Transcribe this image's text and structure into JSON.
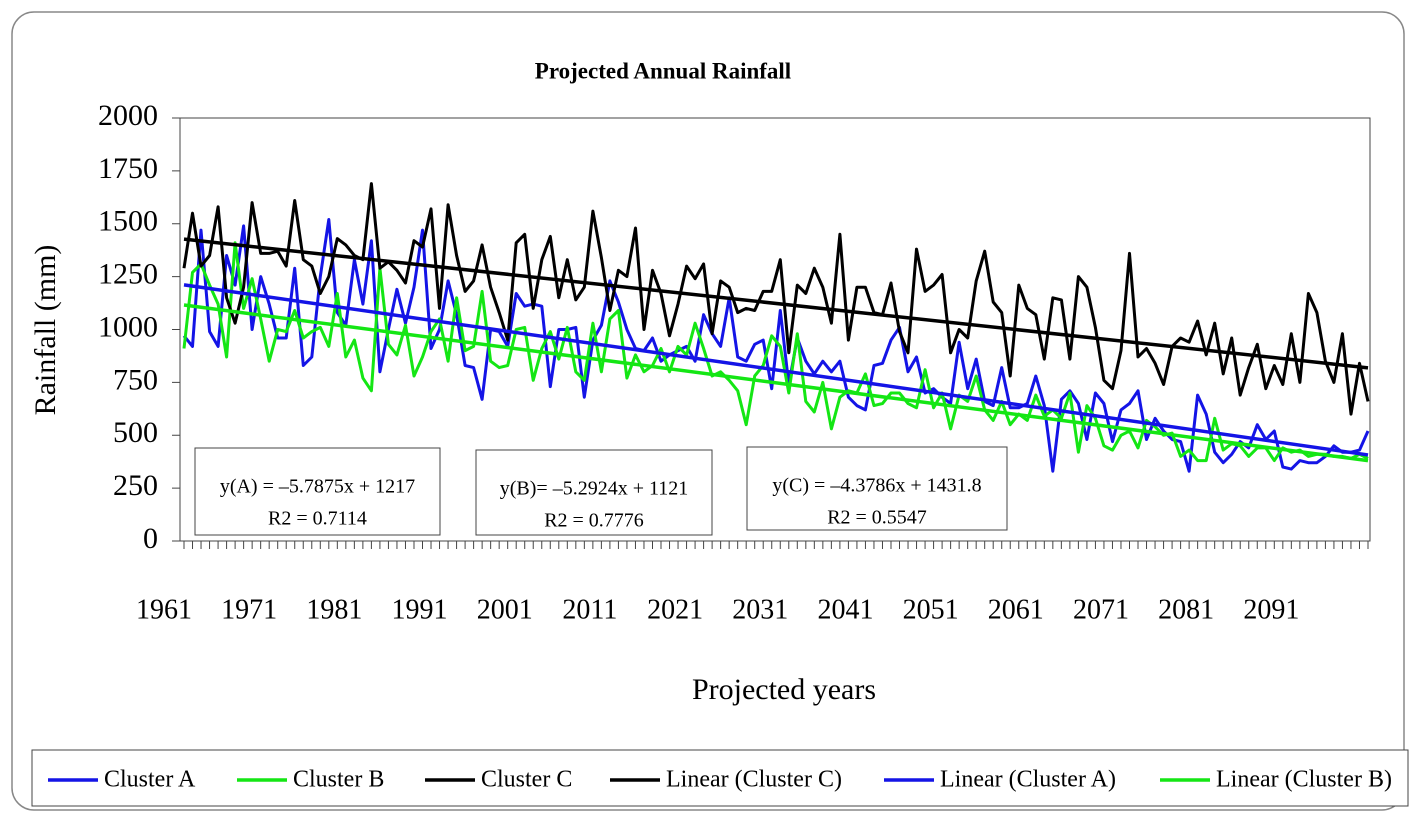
{
  "chart_data": {
    "type": "line",
    "title": "Projected Annual Rainfall",
    "x_label": "Projected years",
    "y_label": "Rainfall (mm)",
    "categories": [
      "1961",
      null,
      null,
      null,
      null,
      null,
      null,
      null,
      null,
      null,
      "1971",
      null,
      null,
      null,
      null,
      null,
      null,
      null,
      null,
      null,
      "1981",
      null,
      null,
      null,
      null,
      null,
      null,
      null,
      null,
      null,
      "1991",
      null,
      null,
      null,
      null,
      null,
      null,
      null,
      null,
      null,
      "2001",
      null,
      null,
      null,
      null,
      null,
      null,
      null,
      null,
      null,
      "2011",
      null,
      null,
      null,
      null,
      null,
      null,
      null,
      null,
      null,
      "2021",
      null,
      null,
      null,
      null,
      null,
      null,
      null,
      null,
      null,
      "2031",
      null,
      null,
      null,
      null,
      null,
      null,
      null,
      null,
      null,
      "2041",
      null,
      null,
      null,
      null,
      null,
      null,
      null,
      null,
      null,
      "2051",
      null,
      null,
      null,
      null,
      null,
      null,
      null,
      null,
      null,
      "2061",
      null,
      null,
      null,
      null,
      null,
      null,
      null,
      null,
      null,
      "2071",
      null,
      null,
      null,
      null,
      null,
      null,
      null,
      null,
      null,
      "2081",
      null,
      null,
      null,
      null,
      null,
      null,
      null,
      null,
      null,
      "2091",
      null,
      null,
      null,
      null,
      null,
      null,
      null,
      null,
      null
    ],
    "series": [
      {
        "name": "Cluster A",
        "color": "#1414e6",
        "values": [
          970,
          920,
          1470,
          990,
          920,
          1350,
          1210,
          1490,
          1000,
          1250,
          1120,
          960,
          960,
          1290,
          830,
          870,
          1250,
          1520,
          1080,
          1020,
          1330,
          1120,
          1420,
          800,
          1000,
          1190,
          1030,
          1200,
          1470,
          910,
          1000,
          1230,
          1070,
          830,
          820,
          670,
          1000,
          990,
          920,
          1170,
          1110,
          1120,
          1110,
          730,
          1000,
          1000,
          1010,
          680,
          950,
          1020,
          1230,
          1130,
          1000,
          910,
          900,
          960,
          850,
          880,
          900,
          920,
          850,
          1070,
          980,
          920,
          1150,
          870,
          850,
          930,
          950,
          720,
          1090,
          740,
          960,
          850,
          790,
          850,
          800,
          850,
          680,
          640,
          620,
          830,
          840,
          950,
          1010,
          800,
          870,
          700,
          720,
          680,
          650,
          940,
          720,
          860,
          660,
          640,
          820,
          630,
          630,
          650,
          780,
          640,
          330,
          670,
          710,
          650,
          480,
          700,
          650,
          470,
          620,
          650,
          710,
          480,
          580,
          520,
          480,
          470,
          330,
          690,
          600,
          420,
          370,
          410,
          470,
          440,
          550,
          480,
          520,
          350,
          340,
          380,
          370,
          370,
          400,
          450,
          420,
          420,
          430,
          520
        ]
      },
      {
        "name": "Cluster B",
        "color": "#14e614",
        "values": [
          910,
          1270,
          1310,
          1210,
          1120,
          870,
          1410,
          1100,
          1240,
          1050,
          850,
          1000,
          990,
          1090,
          960,
          990,
          1010,
          920,
          1170,
          870,
          950,
          770,
          710,
          1290,
          930,
          880,
          1020,
          780,
          870,
          990,
          1050,
          850,
          1150,
          900,
          920,
          1180,
          850,
          820,
          830,
          1000,
          1010,
          760,
          910,
          990,
          860,
          1010,
          800,
          760,
          1030,
          800,
          1050,
          1090,
          770,
          880,
          800,
          830,
          910,
          800,
          920,
          880,
          1030,
          910,
          780,
          800,
          760,
          710,
          550,
          780,
          830,
          970,
          920,
          700,
          980,
          660,
          610,
          750,
          530,
          680,
          710,
          700,
          790,
          640,
          650,
          700,
          700,
          650,
          630,
          810,
          630,
          700,
          530,
          690,
          660,
          780,
          620,
          570,
          660,
          550,
          600,
          570,
          690,
          590,
          620,
          580,
          700,
          420,
          640,
          580,
          450,
          430,
          500,
          520,
          440,
          570,
          540,
          500,
          510,
          400,
          430,
          380,
          380,
          580,
          430,
          460,
          450,
          400,
          440,
          440,
          380,
          440,
          420,
          430,
          400,
          410,
          410,
          400,
          400,
          390,
          410,
          390
        ]
      },
      {
        "name": "Cluster C",
        "color": "#000000",
        "values": [
          1290,
          1550,
          1300,
          1350,
          1580,
          1150,
          1030,
          1200,
          1600,
          1360,
          1360,
          1370,
          1300,
          1610,
          1330,
          1300,
          1170,
          1250,
          1430,
          1400,
          1350,
          1330,
          1690,
          1290,
          1320,
          1280,
          1220,
          1420,
          1390,
          1570,
          1100,
          1590,
          1350,
          1180,
          1230,
          1400,
          1200,
          1080,
          950,
          1410,
          1450,
          1100,
          1330,
          1440,
          1150,
          1330,
          1140,
          1200,
          1560,
          1340,
          1090,
          1280,
          1250,
          1480,
          1000,
          1280,
          1170,
          970,
          1120,
          1300,
          1240,
          1310,
          980,
          1230,
          1200,
          1080,
          1100,
          1090,
          1180,
          1180,
          1330,
          890,
          1210,
          1170,
          1290,
          1200,
          1030,
          1450,
          950,
          1200,
          1200,
          1080,
          1070,
          1220,
          990,
          890,
          1380,
          1180,
          1210,
          1260,
          890,
          1000,
          960,
          1230,
          1370,
          1130,
          1080,
          780,
          1210,
          1100,
          1070,
          860,
          1150,
          1140,
          860,
          1250,
          1200,
          1010,
          760,
          720,
          900,
          1360,
          870,
          910,
          840,
          740,
          920,
          960,
          940,
          1040,
          880,
          1030,
          790,
          960,
          690,
          820,
          930,
          720,
          830,
          740,
          980,
          750,
          1170,
          1080,
          850,
          750,
          980,
          600,
          840,
          660
        ]
      }
    ],
    "trendlines": [
      {
        "name": "Linear (Cluster C)",
        "color": "#000000",
        "values": [
          1427.4,
          818.8
        ]
      },
      {
        "name": "Linear (Cluster A)",
        "color": "#1414e6",
        "values": [
          1211.2,
          406.9
        ]
      },
      {
        "name": "Linear (Cluster B)",
        "color": "#14e614",
        "values": [
          1115.7,
          380.1
        ]
      }
    ],
    "annotations": [
      {
        "lines": [
          "y(A) = –5.7875x + 1217",
          "R2 = 0.7114"
        ]
      },
      {
        "lines": [
          "y(B)= –5.2924x + 1121",
          "R2 = 0.7776"
        ]
      },
      {
        "lines": [
          "y(C) = –4.3786x + 1431.8",
          "R2 = 0.5547"
        ]
      }
    ],
    "ylim": [
      0,
      2000
    ],
    "yticks": [
      0,
      250,
      500,
      750,
      1000,
      1250,
      1500,
      1750,
      2000
    ]
  }
}
